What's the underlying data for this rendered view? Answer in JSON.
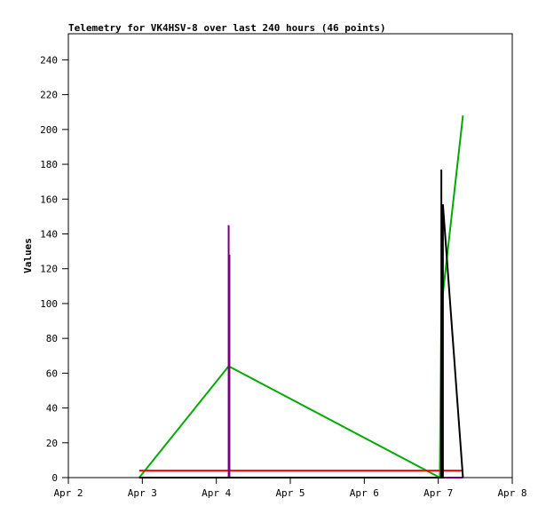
{
  "chart_data": {
    "type": "line",
    "title": "Telemetry for VK4HSV-8 over last 240 hours (46 points)",
    "xlabel": "",
    "ylabel": "Values",
    "xlim": [
      "Apr 2",
      "Apr 8"
    ],
    "ylim": [
      0,
      255
    ],
    "x_ticks": [
      "Apr 2",
      "Apr 3",
      "Apr 4",
      "Apr 5",
      "Apr 6",
      "Apr 7",
      "Apr 8"
    ],
    "y_ticks": [
      0,
      20,
      40,
      60,
      80,
      100,
      120,
      140,
      160,
      180,
      200,
      220,
      240
    ],
    "grid": false,
    "series": [
      {
        "color": "#00aa00",
        "points": [
          [
            "Apr 2 23:00",
            0
          ],
          [
            "Apr 4 04:00",
            64
          ],
          [
            "Apr 7 00:30",
            0
          ],
          [
            "Apr 7 01:00",
            98
          ],
          [
            "Apr 7 08:00",
            208
          ]
        ]
      },
      {
        "color": "#ff0000",
        "points": [
          [
            "Apr 2 23:00",
            4
          ],
          [
            "Apr 7 08:00",
            4
          ]
        ]
      },
      {
        "color": "#770077",
        "points": [
          [
            "Apr 2 23:00",
            0
          ],
          [
            "Apr 4 04:00",
            0
          ],
          [
            "Apr 4 04:00",
            145
          ],
          [
            "Apr 4 04:00",
            0
          ],
          [
            "Apr 4 04:15",
            0
          ],
          [
            "Apr 4 04:15",
            128
          ],
          [
            "Apr 4 04:15",
            0
          ],
          [
            "Apr 7 08:00",
            0
          ]
        ]
      },
      {
        "color": "#000000",
        "points": [
          [
            "Apr 2 23:00",
            0
          ],
          [
            "Apr 7 01:00",
            0
          ],
          [
            "Apr 7 01:00",
            177
          ],
          [
            "Apr 7 01:00",
            0
          ],
          [
            "Apr 7 01:30",
            0
          ],
          [
            "Apr 7 01:30",
            157
          ],
          [
            "Apr 7 08:00",
            0
          ]
        ]
      }
    ]
  }
}
